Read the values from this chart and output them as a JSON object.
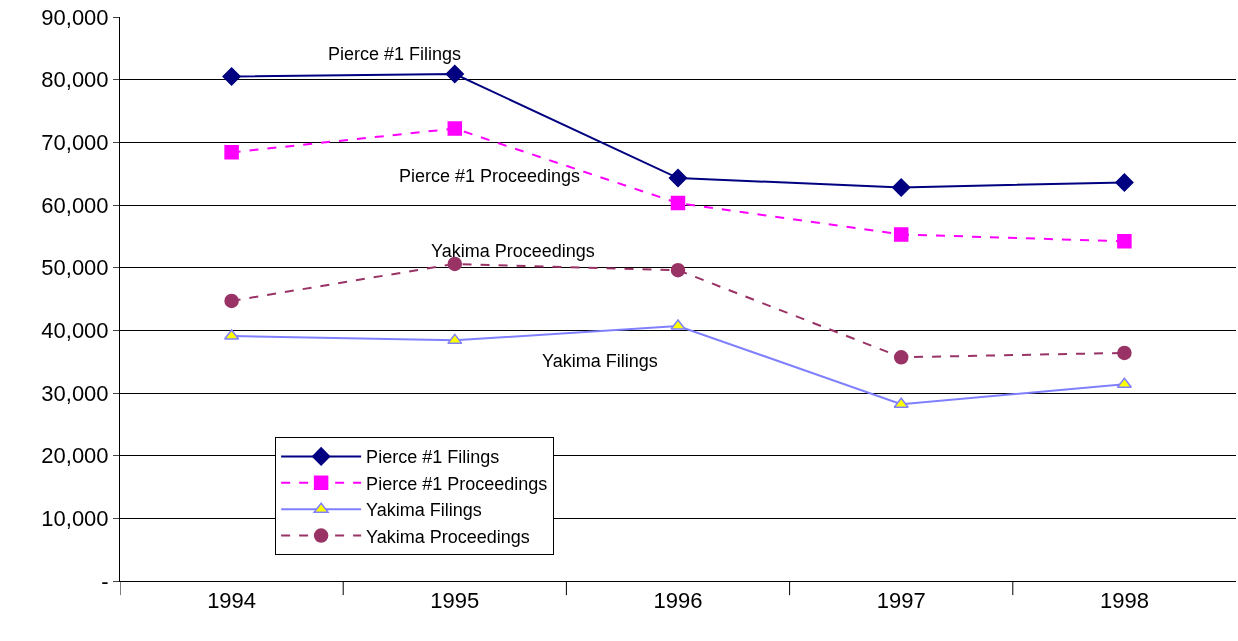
{
  "chart_data": {
    "type": "line",
    "categories": [
      "1994",
      "1995",
      "1996",
      "1997",
      "1998"
    ],
    "series": [
      {
        "name": "Pierce #1 Filings",
        "color": "#000080",
        "marker": "diamond",
        "line_style": "solid",
        "values": [
          80500,
          80900,
          64300,
          62800,
          63600
        ]
      },
      {
        "name": "Pierce #1 Proceedings",
        "color": "#ff00ff",
        "marker": "square",
        "line_style": "dashed",
        "values": [
          68400,
          72200,
          60300,
          55300,
          54200
        ]
      },
      {
        "name": "Yakima Filings",
        "color": "#8080ff",
        "marker": "triangle",
        "line_style": "solid",
        "values": [
          39100,
          38400,
          40700,
          28200,
          31400
        ]
      },
      {
        "name": "Yakima Proceedings",
        "color": "#993366",
        "marker": "circle",
        "line_style": "dashed",
        "values": [
          44700,
          50600,
          49600,
          35700,
          36400
        ]
      }
    ],
    "ylim": [
      0,
      90000
    ],
    "yticks": [
      {
        "value": 0,
        "label": "-"
      },
      {
        "value": 10000,
        "label": "10,000"
      },
      {
        "value": 20000,
        "label": "20,000"
      },
      {
        "value": 30000,
        "label": "30,000"
      },
      {
        "value": 40000,
        "label": "40,000"
      },
      {
        "value": 50000,
        "label": "50,000"
      },
      {
        "value": 60000,
        "label": "60,000"
      },
      {
        "value": 70000,
        "label": "70,000"
      },
      {
        "value": 80000,
        "label": "80,000"
      },
      {
        "value": 90000,
        "label": "90,000"
      }
    ],
    "grid": "y",
    "legend": "bottom left",
    "annotations": [
      "Pierce #1 Filings",
      "Pierce #1 Proceedings",
      "Yakima Proceedings",
      "Yakima Filings"
    ]
  }
}
